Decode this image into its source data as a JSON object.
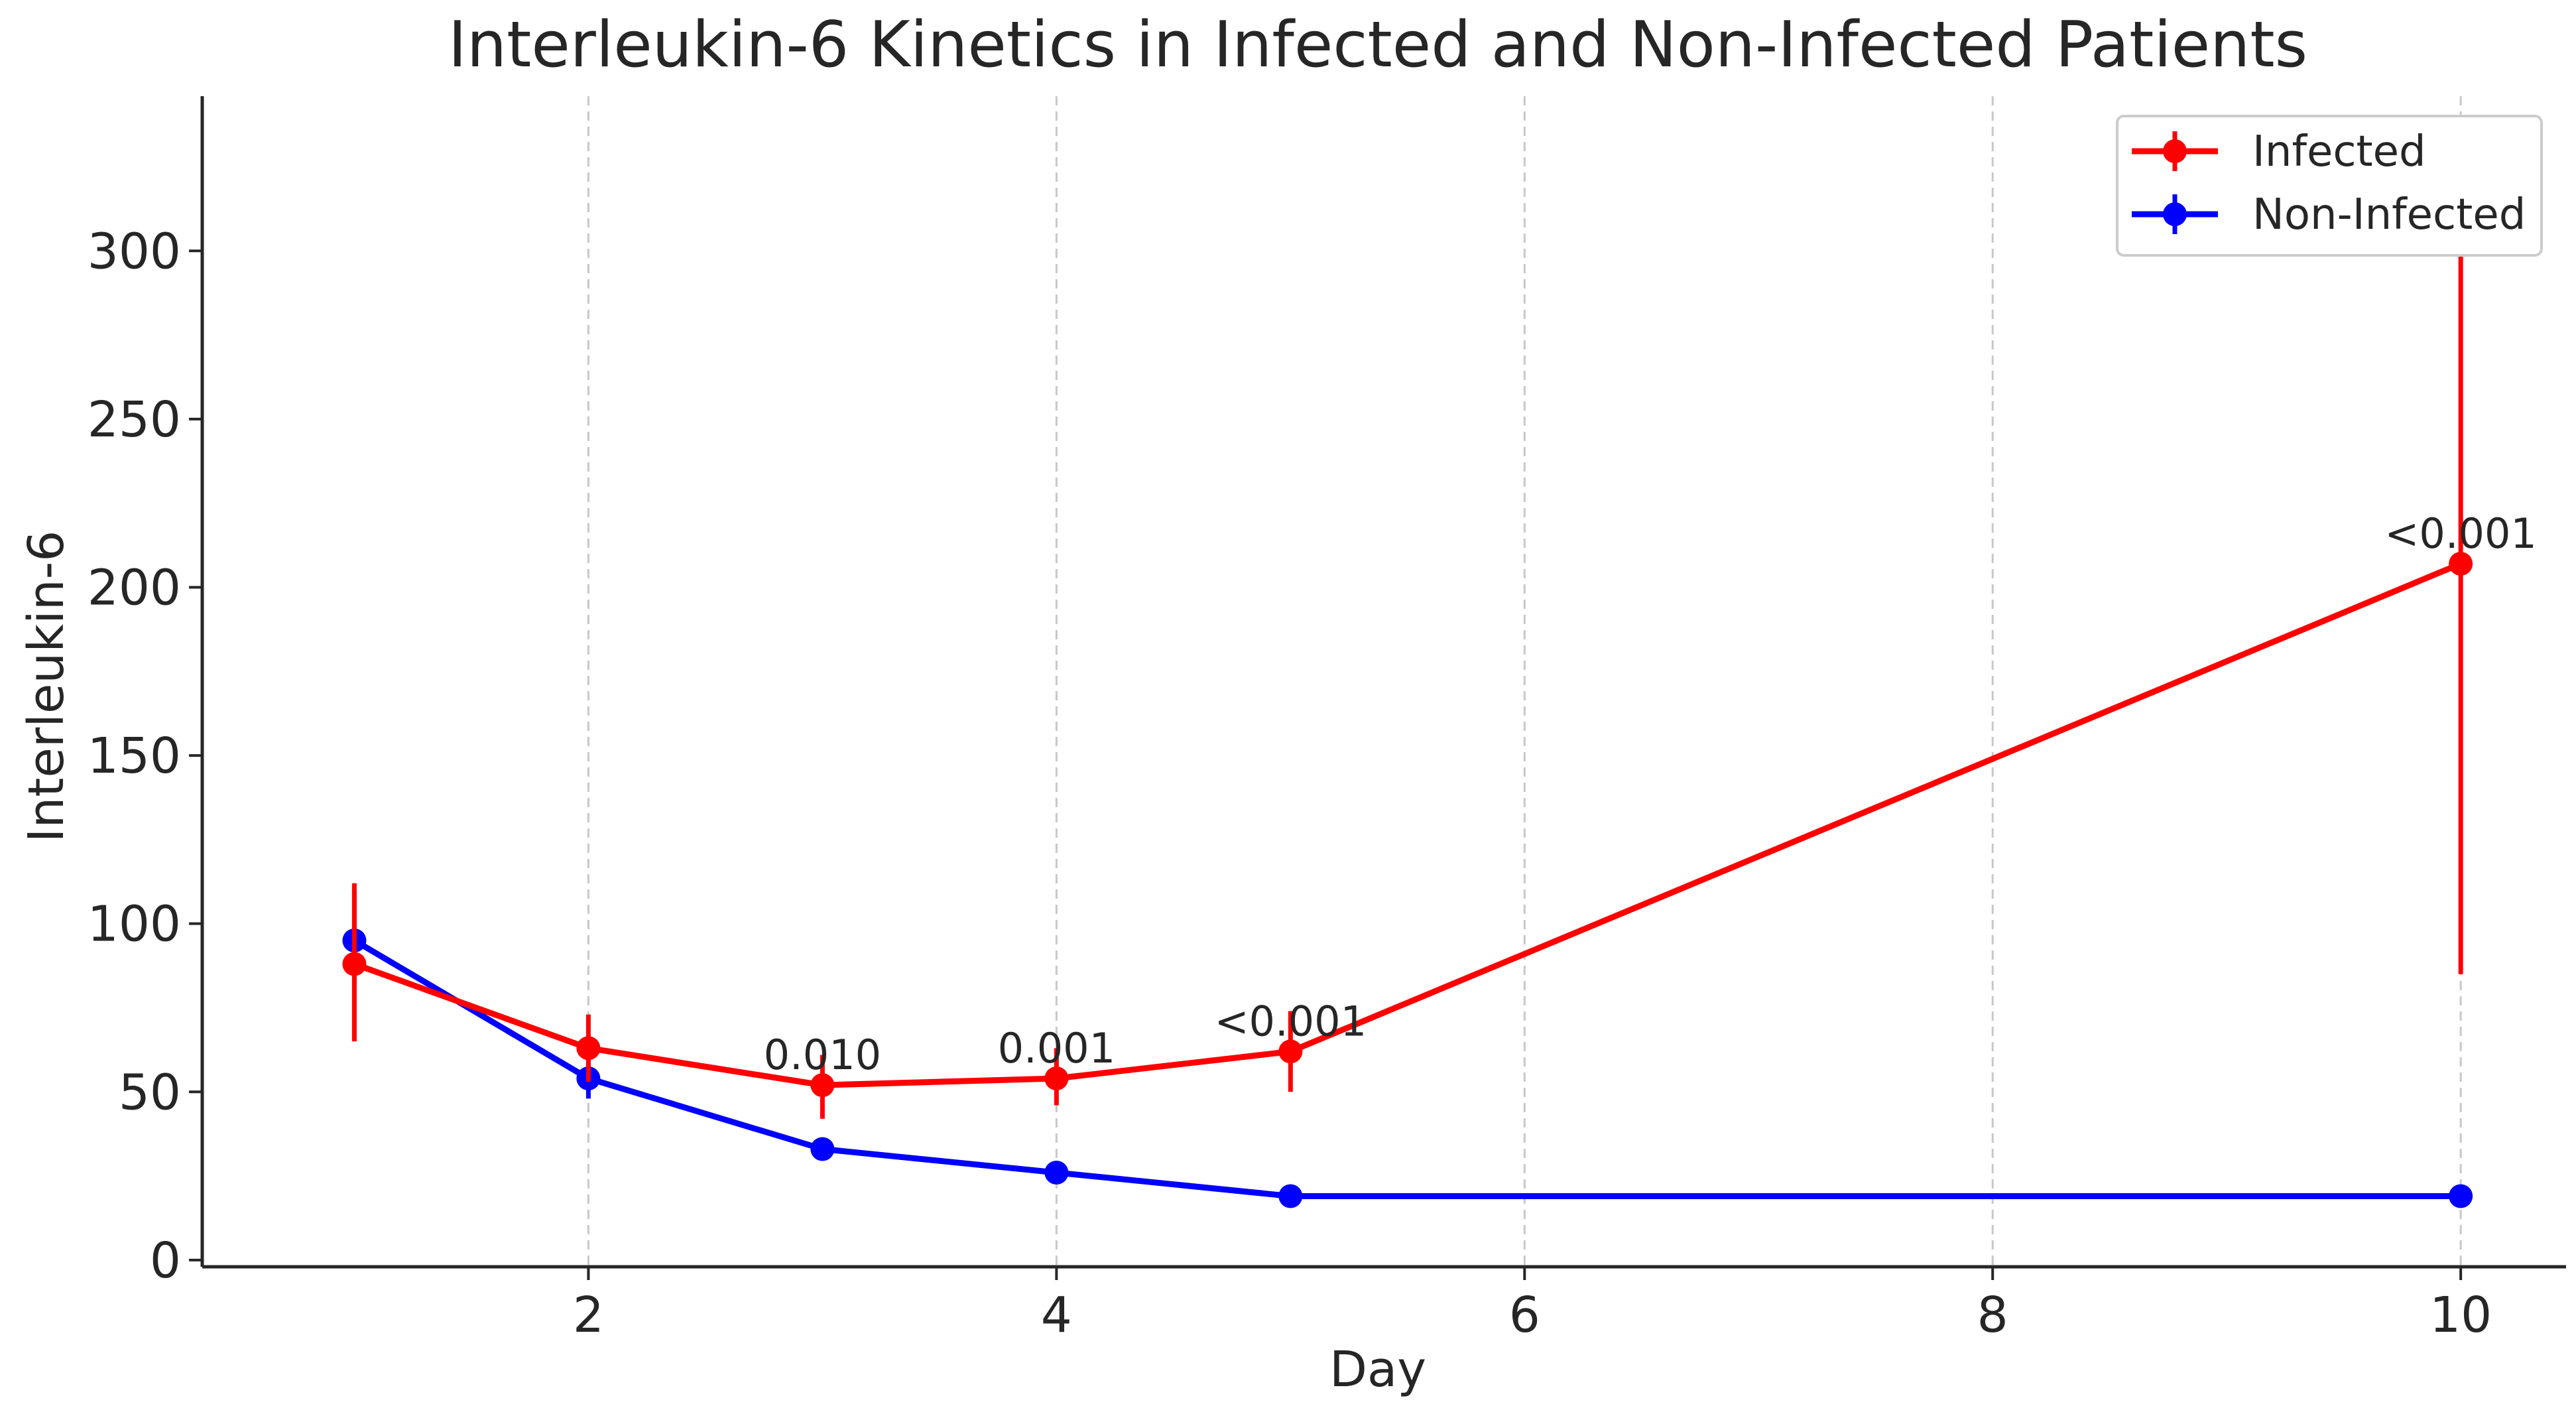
{
  "chart_data": {
    "type": "line",
    "title": "Interleukin-6 Kinetics in Infected and Non-Infected Patients",
    "xlabel": "Day",
    "ylabel": "Interleukin-6",
    "xlim": [
      0.35,
      10.45
    ],
    "ylim": [
      -2,
      346
    ],
    "x_ticks": [
      2,
      4,
      6,
      8,
      10
    ],
    "y_ticks": [
      0,
      50,
      100,
      150,
      200,
      250,
      300
    ],
    "grid": "x-dashed",
    "legend_position": "top-right",
    "series": [
      {
        "name": "Infected",
        "color": "#ff0000",
        "points": [
          {
            "x": 1,
            "y": 88,
            "err_low": 65,
            "err_high": 112
          },
          {
            "x": 2,
            "y": 63,
            "err_low": 53,
            "err_high": 73
          },
          {
            "x": 3,
            "y": 52,
            "err_low": 42,
            "err_high": 61
          },
          {
            "x": 4,
            "y": 54,
            "err_low": 46,
            "err_high": 63
          },
          {
            "x": 5,
            "y": 62,
            "err_low": 50,
            "err_high": 74
          },
          {
            "x": 10,
            "y": 207,
            "err_low": 85,
            "err_high": 330
          }
        ]
      },
      {
        "name": "Non-Infected",
        "color": "#0000ff",
        "points": [
          {
            "x": 1,
            "y": 95,
            "err_low": 82,
            "err_high": 110
          },
          {
            "x": 2,
            "y": 54,
            "err_low": 48,
            "err_high": 60
          },
          {
            "x": 3,
            "y": 33,
            "err_low": 30,
            "err_high": 36
          },
          {
            "x": 4,
            "y": 26,
            "err_low": 24,
            "err_high": 28
          },
          {
            "x": 5,
            "y": 19,
            "err_low": 17,
            "err_high": 21
          },
          {
            "x": 10,
            "y": 19,
            "err_low": 16,
            "err_high": 22
          }
        ]
      }
    ],
    "annotations": [
      {
        "x": 3,
        "y": 52,
        "text": "0.010"
      },
      {
        "x": 4,
        "y": 54,
        "text": "0.001"
      },
      {
        "x": 5,
        "y": 62,
        "text": "<0.001"
      },
      {
        "x": 10,
        "y": 207,
        "text": "<0.001"
      }
    ]
  }
}
